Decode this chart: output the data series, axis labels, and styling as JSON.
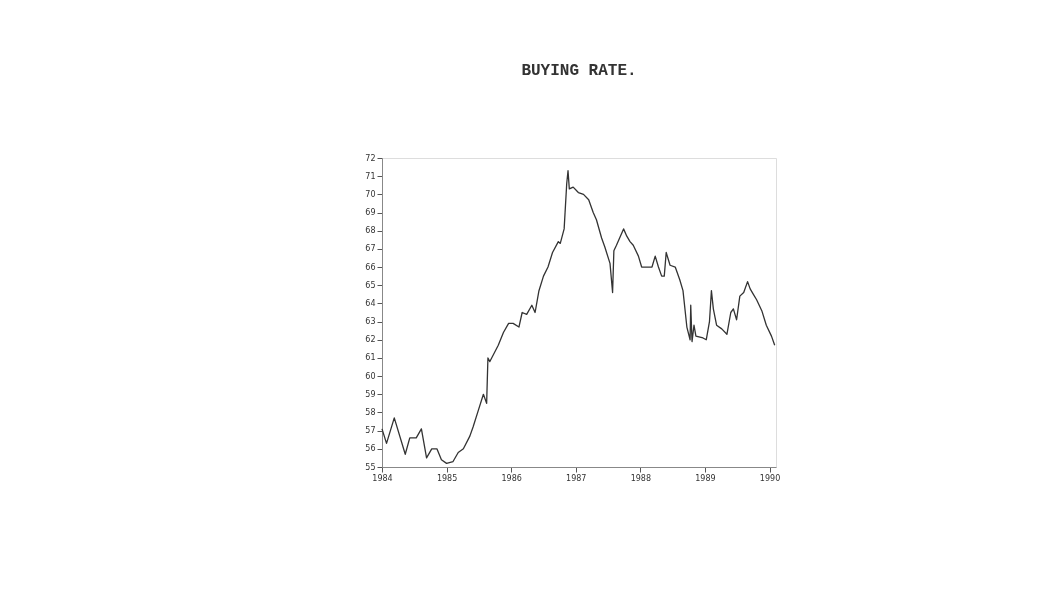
{
  "chart_data": {
    "type": "line",
    "title": "BUYING RATE.",
    "x": [
      1984.0,
      1984.07,
      1984.19,
      1984.36,
      1984.43,
      1984.53,
      1984.61,
      1984.69,
      1984.77,
      1984.85,
      1984.92,
      1985.0,
      1985.1,
      1985.18,
      1985.26,
      1985.36,
      1985.41,
      1985.49,
      1985.57,
      1985.62,
      1985.64,
      1985.67,
      1985.8,
      1985.88,
      1985.96,
      1986.03,
      1986.12,
      1986.17,
      1986.24,
      1986.32,
      1986.37,
      1986.43,
      1986.5,
      1986.57,
      1986.64,
      1986.73,
      1986.76,
      1986.82,
      1986.86,
      1986.88,
      1986.9,
      1986.96,
      1987.04,
      1987.12,
      1987.2,
      1987.27,
      1987.32,
      1987.4,
      1987.45,
      1987.53,
      1987.57,
      1987.59,
      1987.63,
      1987.74,
      1987.79,
      1987.84,
      1987.89,
      1987.97,
      1988.02,
      1988.1,
      1988.18,
      1988.23,
      1988.28,
      1988.33,
      1988.37,
      1988.4,
      1988.46,
      1988.54,
      1988.61,
      1988.66,
      1988.72,
      1988.77,
      1988.78,
      1988.8,
      1988.83,
      1988.86,
      1988.97,
      1989.02,
      1989.07,
      1989.1,
      1989.13,
      1989.18,
      1989.26,
      1989.34,
      1989.4,
      1989.44,
      1989.49,
      1989.54,
      1989.6,
      1989.66,
      1989.7,
      1989.75,
      1989.8,
      1989.88,
      1989.95,
      1990.03,
      1990.08
    ],
    "series": [
      {
        "color": "#333333",
        "values": [
          57.1,
          56.3,
          57.7,
          55.7,
          56.6,
          56.6,
          57.1,
          55.5,
          56.0,
          56.0,
          55.4,
          55.2,
          55.3,
          55.8,
          56.0,
          56.7,
          57.2,
          58.1,
          59.0,
          58.5,
          61.0,
          60.8,
          61.7,
          62.4,
          62.9,
          62.9,
          62.7,
          63.5,
          63.4,
          63.9,
          63.5,
          64.7,
          65.5,
          66.0,
          66.8,
          67.4,
          67.3,
          68.1,
          70.6,
          71.3,
          70.3,
          70.4,
          70.1,
          70.0,
          69.7,
          69.0,
          68.6,
          67.6,
          67.1,
          66.2,
          64.6,
          66.9,
          67.2,
          68.1,
          67.7,
          67.4,
          67.2,
          66.6,
          66.0,
          66.0,
          66.0,
          66.6,
          66.0,
          65.5,
          65.5,
          66.8,
          66.1,
          66.0,
          65.3,
          64.7,
          62.7,
          62.0,
          63.9,
          61.9,
          62.8,
          62.2,
          62.1,
          62.0,
          63.0,
          64.7,
          63.7,
          62.8,
          62.6,
          62.3,
          63.5,
          63.7,
          63.1,
          64.4,
          64.6,
          65.2,
          64.8,
          64.5,
          64.2,
          63.6,
          62.8,
          62.2,
          61.7
        ]
      }
    ],
    "xlim": [
      1984,
      1990.1
    ],
    "xticks": [
      1984,
      1985,
      1986,
      1987,
      1988,
      1989,
      1990
    ],
    "ylim": [
      55,
      72
    ],
    "yticks": [
      55,
      56,
      57,
      58,
      59,
      60,
      61,
      62,
      63,
      64,
      65,
      66,
      67,
      68,
      69,
      70,
      71,
      72
    ],
    "grid": false,
    "legend": false,
    "marker": "none",
    "line_style": "solid"
  }
}
